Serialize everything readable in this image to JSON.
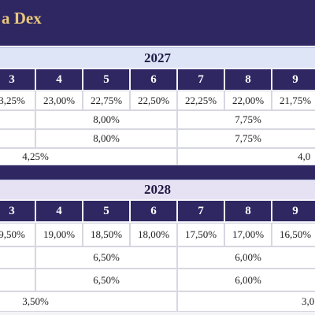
{
  "header": {
    "title": "a Dex"
  },
  "tables": [
    {
      "year": "2027",
      "columns": [
        "3",
        "4",
        "5",
        "6",
        "7",
        "8",
        "9"
      ],
      "rates": [
        "3,25%",
        "23,00%",
        "22,75%",
        "22,50%",
        "22,25%",
        "22,00%",
        "21,75%"
      ],
      "rows": [
        [
          "8,00%",
          "7,75%"
        ],
        [
          "8,00%",
          "7,75%"
        ],
        [
          "4,25%",
          "4,0"
        ]
      ]
    },
    {
      "year": "2028",
      "columns": [
        "3",
        "4",
        "5",
        "6",
        "7",
        "8",
        "9"
      ],
      "rates": [
        "9,50%",
        "19,00%",
        "18,50%",
        "18,00%",
        "17,50%",
        "17,00%",
        "16,50%"
      ],
      "rows": [
        [
          "6,50%",
          "6,00%"
        ],
        [
          "6,50%",
          "6,00%"
        ],
        [
          "3,50%",
          "3,0"
        ]
      ]
    }
  ]
}
